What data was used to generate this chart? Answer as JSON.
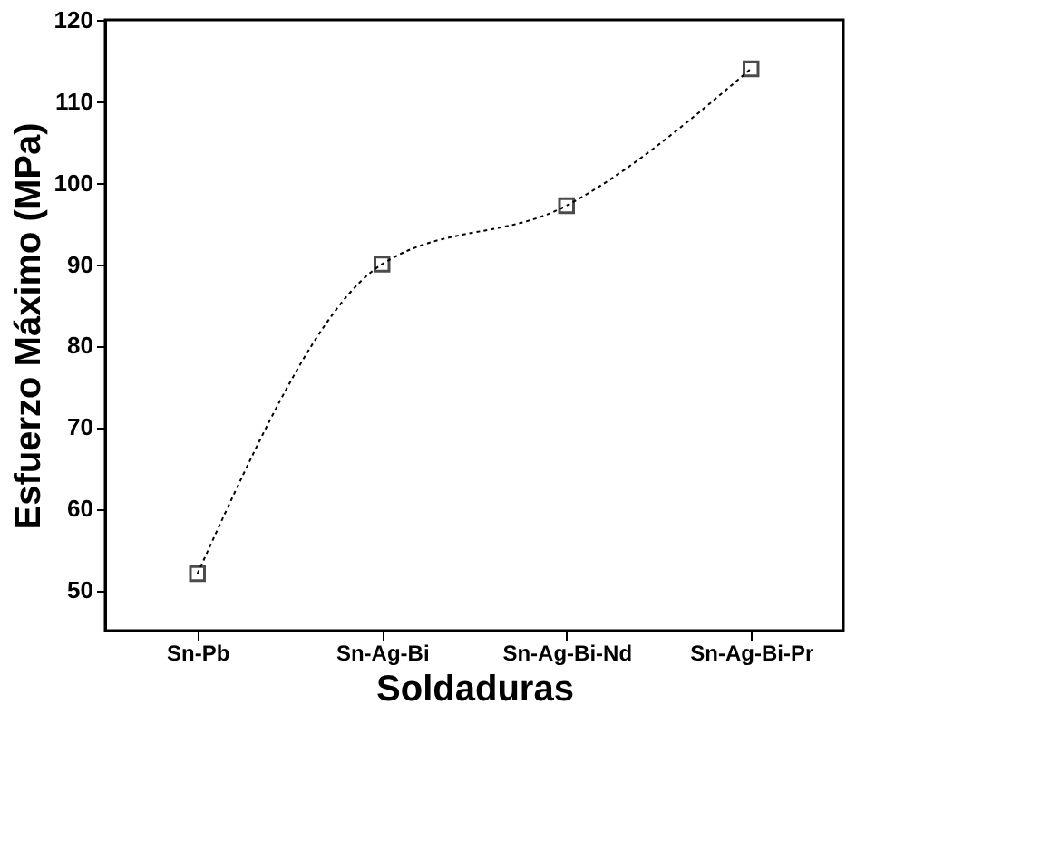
{
  "chart_data": {
    "type": "line",
    "xlabel": "Soldaduras",
    "ylabel": "Esfuerzo Máximo (MPa)",
    "categories": [
      "Sn-Pb",
      "Sn-Ag-Bi",
      "Sn-Ag-Bi-Nd",
      "Sn-Ag-Bi-Pr"
    ],
    "series": [
      {
        "color": "#000000",
        "values": [
          52,
          90,
          97.2,
          114
        ]
      }
    ],
    "ylim": [
      45,
      120
    ],
    "yticks": [
      50,
      60,
      70,
      80,
      90,
      100,
      110,
      120
    ],
    "grid": false,
    "legend": false,
    "marker": "square",
    "line_style": "dotted"
  }
}
